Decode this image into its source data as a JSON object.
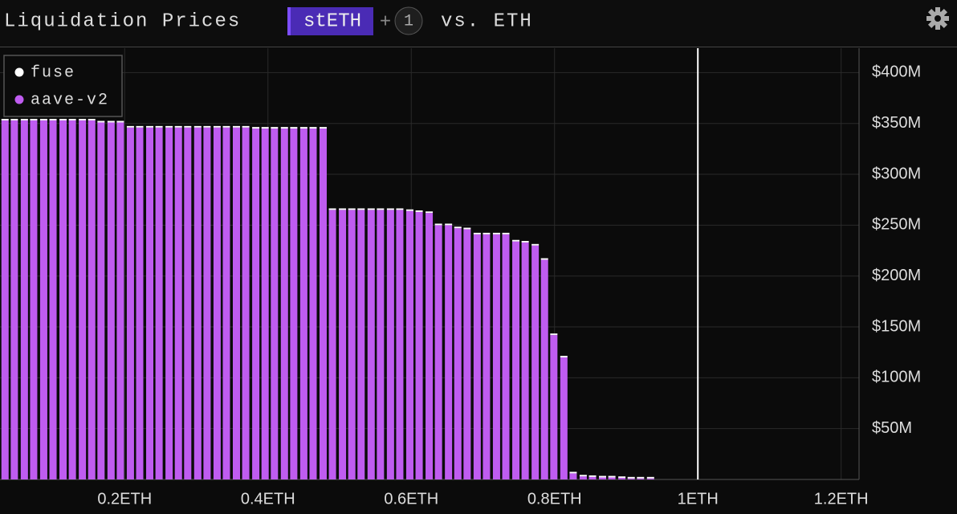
{
  "header": {
    "title": "Liquidation Prices",
    "asset": "stETH",
    "plus": "+",
    "count": "1",
    "versus": "vs. ETH"
  },
  "chart_data": {
    "type": "bar",
    "stacked": true,
    "x": [
      0.033,
      0.046,
      0.06,
      0.073,
      0.087,
      0.1,
      0.114,
      0.127,
      0.141,
      0.154,
      0.167,
      0.181,
      0.194,
      0.208,
      0.221,
      0.235,
      0.248,
      0.262,
      0.275,
      0.288,
      0.302,
      0.315,
      0.329,
      0.342,
      0.356,
      0.369,
      0.383,
      0.396,
      0.409,
      0.423,
      0.436,
      0.45,
      0.463,
      0.477,
      0.49,
      0.504,
      0.517,
      0.53,
      0.544,
      0.557,
      0.571,
      0.584,
      0.598,
      0.611,
      0.625,
      0.638,
      0.652,
      0.665,
      0.678,
      0.692,
      0.705,
      0.719,
      0.732,
      0.746,
      0.759,
      0.773,
      0.786,
      0.799,
      0.813,
      0.826,
      0.84,
      0.853,
      0.867,
      0.88,
      0.894,
      0.907,
      0.92,
      0.934
    ],
    "series": [
      {
        "name": "fuse",
        "color": "#ffffff",
        "values": [
          1.5,
          1.5,
          1.5,
          1.5,
          1.5,
          1.5,
          1.5,
          1.5,
          1.5,
          1.5,
          1.5,
          1.5,
          1.5,
          1.5,
          1.5,
          1.5,
          1.5,
          1.5,
          1.5,
          1.5,
          1.5,
          1.5,
          1.5,
          1.5,
          1.5,
          1.5,
          1.5,
          1.5,
          1.5,
          1.5,
          1.5,
          1.5,
          1.5,
          1.5,
          1.5,
          1.5,
          1.5,
          1.5,
          1.5,
          1.5,
          1.5,
          1.5,
          1.5,
          1.5,
          1.5,
          1.5,
          1.5,
          1.5,
          1.5,
          1.5,
          1.5,
          1.5,
          1.5,
          1.5,
          1.5,
          1.5,
          1.5,
          1.5,
          1.5,
          1.5,
          1.5,
          1.5,
          1.5,
          1.5,
          1.5,
          1.5,
          1.5,
          1.5
        ]
      },
      {
        "name": "aave-v2",
        "color": "#bf5cf0",
        "values": [
          353,
          353,
          353,
          353,
          353,
          353,
          353,
          353,
          353,
          353,
          351,
          351,
          351,
          346,
          346,
          346,
          346,
          346,
          346,
          346,
          346,
          346,
          346,
          346,
          346,
          346,
          345,
          345,
          345,
          345,
          345,
          345,
          345,
          345,
          265,
          265,
          265,
          265,
          265,
          265,
          265,
          265,
          264,
          263,
          262,
          250,
          250,
          247,
          246,
          241,
          241,
          241,
          241,
          234,
          233,
          230,
          216,
          142,
          120,
          6,
          3,
          2.5,
          2,
          2,
          1.5,
          1,
          1,
          1
        ]
      }
    ],
    "xlim": [
      0.026,
      1.225
    ],
    "ylim": [
      0,
      424
    ],
    "xticks": [
      {
        "value": 0.2,
        "label": "0.2ETH"
      },
      {
        "value": 0.4,
        "label": "0.4ETH"
      },
      {
        "value": 0.6,
        "label": "0.6ETH"
      },
      {
        "value": 0.8,
        "label": "0.8ETH"
      },
      {
        "value": 1,
        "label": "1ETH"
      },
      {
        "value": 1.2,
        "label": "1.2ETH"
      }
    ],
    "yticks": [
      {
        "value": 50,
        "label": "$50M"
      },
      {
        "value": 100,
        "label": "$100M"
      },
      {
        "value": 150,
        "label": "$150M"
      },
      {
        "value": 200,
        "label": "$200M"
      },
      {
        "value": 250,
        "label": "$250M"
      },
      {
        "value": 300,
        "label": "$300M"
      },
      {
        "value": 350,
        "label": "$350M"
      },
      {
        "value": 400,
        "label": "$400M"
      }
    ],
    "grid": true,
    "reference_x": 1,
    "legend": "upper left"
  }
}
